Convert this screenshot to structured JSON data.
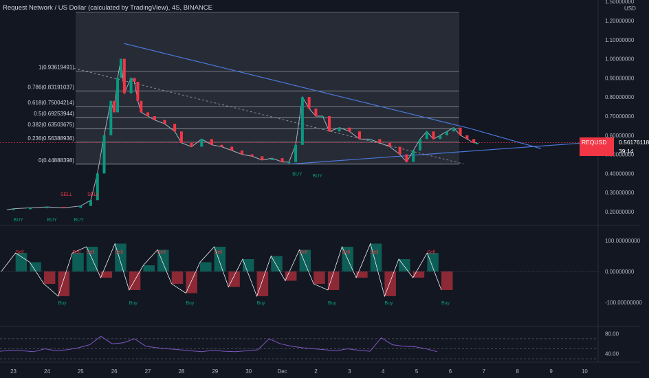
{
  "header": {
    "title": "Request Network / US Dollar (calculated by TradingView), 4S, BINANCE"
  },
  "price_axis": {
    "currency": "USD",
    "ticks": [
      "1.50000000",
      "1.20000000",
      "1.10000000",
      "1.00000000",
      "0.90000000",
      "0.80000000",
      "0.70000000",
      "0.60000000",
      "0.50000000",
      "0.40000000",
      "0.30000000",
      "0.20000000"
    ],
    "current_symbol": "REQUSD",
    "current_price": "0.56176118",
    "countdown": "39:14"
  },
  "fib_levels": [
    {
      "label": "1(0.93619491)",
      "value": 0.93619491
    },
    {
      "label": "0.786(0.83191037)",
      "value": 0.83191037
    },
    {
      "label": "0.618(0.75004214)",
      "value": 0.75004214
    },
    {
      "label": "0.5(0.69253944)",
      "value": 0.69253944
    },
    {
      "label": "0.382(0.63503675)",
      "value": 0.63503675
    },
    {
      "label": "0.236(0.56388936)",
      "value": 0.56388936
    },
    {
      "label": "0(0.44888398)",
      "value": 0.44888398
    }
  ],
  "osc_axis": {
    "ticks": [
      "100.00000000",
      "0.00000000",
      "-100.00000000"
    ]
  },
  "rsi_axis": {
    "ticks": [
      "80.00",
      "40.00"
    ]
  },
  "time_axis": {
    "ticks": [
      "23",
      "24",
      "25",
      "26",
      "27",
      "28",
      "29",
      "30",
      "Dec",
      "2",
      "3",
      "4",
      "5",
      "6",
      "7",
      "8",
      "9",
      "10"
    ]
  },
  "signals": {
    "sell": "SELL",
    "buy": "BUY",
    "osc_sell": "Sell",
    "osc_buy": "Buy"
  },
  "colors": {
    "bg": "#131722",
    "up": "#089981",
    "down": "#f23645",
    "trend": "#4a78d6",
    "rsi": "#7e57c2",
    "grid": "#2a2e39",
    "text": "#b2b5be",
    "fibbox": "#2b2f3a"
  },
  "chart_data": {
    "type": "line",
    "title": "Request Network / US Dollar (calculated by TradingView), 4S, BINANCE",
    "xlabel": "",
    "ylabel": "USD",
    "ylim": [
      0.15,
      1.5
    ],
    "x": [
      22.8,
      23,
      23.5,
      24,
      24.5,
      25,
      25.3,
      25.5,
      25.7,
      25.9,
      26.0,
      26.1,
      26.2,
      26.3,
      26.5,
      26.6,
      26.7,
      26.8,
      27,
      27.2,
      27.5,
      27.8,
      28,
      28.3,
      28.6,
      28.9,
      29.2,
      29.5,
      29.8,
      30.1,
      30.4,
      30.7,
      31.0,
      31.2,
      31.4,
      31.6,
      31.8,
      32.0,
      32.2,
      32.4,
      32.7,
      33.0,
      33.3,
      33.6,
      33.9,
      34.2,
      34.5,
      34.7,
      34.9,
      35.1,
      35.3,
      35.5,
      35.7,
      35.9,
      36.1,
      36.3,
      36.5,
      36.7,
      36.8
    ],
    "series": [
      {
        "values": [
          0.21,
          0.215,
          0.22,
          0.225,
          0.22,
          0.23,
          0.26,
          0.4,
          0.6,
          0.78,
          0.72,
          0.9,
          1.0,
          0.82,
          0.9,
          0.88,
          0.78,
          0.72,
          0.7,
          0.68,
          0.66,
          0.62,
          0.56,
          0.54,
          0.58,
          0.55,
          0.54,
          0.52,
          0.5,
          0.49,
          0.47,
          0.48,
          0.46,
          0.46,
          0.55,
          0.8,
          0.74,
          0.7,
          0.7,
          0.62,
          0.64,
          0.62,
          0.58,
          0.58,
          0.56,
          0.54,
          0.5,
          0.46,
          0.52,
          0.58,
          0.62,
          0.58,
          0.6,
          0.62,
          0.64,
          0.6,
          0.58,
          0.56,
          0.56
        ]
      }
    ],
    "oscillator": [
      0,
      60,
      30,
      -40,
      -80,
      60,
      80,
      -20,
      90,
      -60,
      20,
      70,
      -40,
      -70,
      30,
      80,
      -50,
      40,
      -80,
      50,
      -30,
      70,
      -40,
      -60,
      80,
      -20,
      90,
      -80,
      40,
      -20,
      60,
      -60
    ],
    "rsi": [
      45,
      47,
      46,
      44,
      50,
      46,
      48,
      52,
      58,
      75,
      60,
      62,
      70,
      55,
      52,
      50,
      48,
      46,
      44,
      47,
      45,
      44,
      46,
      48,
      70,
      60,
      55,
      52,
      50,
      48,
      46,
      50,
      47,
      45,
      72,
      58,
      55,
      54,
      50,
      44
    ],
    "annotations": [
      "SELL",
      "BUY",
      "Sell",
      "Buy"
    ]
  }
}
